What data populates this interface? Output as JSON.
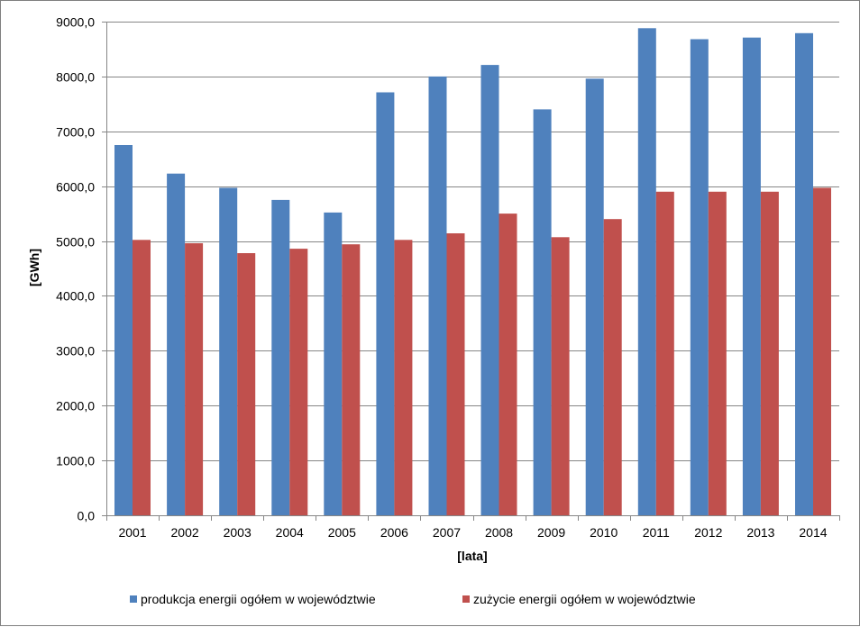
{
  "chart_data": {
    "type": "bar",
    "categories": [
      "2001",
      "2002",
      "2003",
      "2004",
      "2005",
      "2006",
      "2007",
      "2008",
      "2009",
      "2010",
      "2011",
      "2012",
      "2013",
      "2014"
    ],
    "series": [
      {
        "name": "produkcja energii ogółem w województwie",
        "color": "#4f81bd",
        "values": [
          6750,
          6230,
          5970,
          5750,
          5520,
          7710,
          8000,
          8210,
          7400,
          7960,
          8880,
          8680,
          8710,
          8790
        ]
      },
      {
        "name": "zużycie energii ogółem w województwie",
        "color": "#c0504d",
        "values": [
          5020,
          4960,
          4780,
          4860,
          4940,
          5020,
          5140,
          5500,
          5070,
          5400,
          5900,
          5900,
          5900,
          5970
        ]
      }
    ],
    "xlabel": "[lata]",
    "ylabel": "[GWh]",
    "ylim": [
      0,
      9000
    ],
    "yticks": [
      "0,0",
      "1000,0",
      "2000,0",
      "3000,0",
      "4000,0",
      "5000,0",
      "6000,0",
      "7000,0",
      "8000,0",
      "9000,0"
    ],
    "grid": true,
    "legend_position": "bottom"
  }
}
